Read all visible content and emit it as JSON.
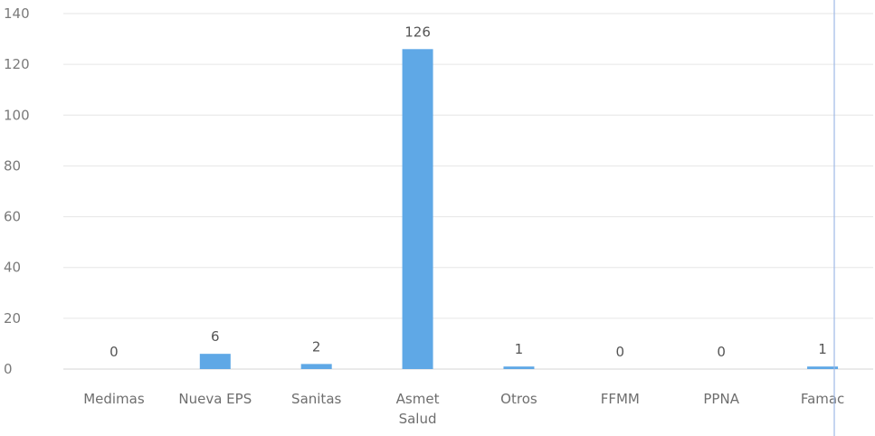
{
  "chart_data": {
    "type": "bar",
    "categories": [
      [
        "Medimas"
      ],
      [
        "Nueva EPS"
      ],
      [
        "Sanitas"
      ],
      [
        "Asmet",
        "Salud"
      ],
      [
        "Otros"
      ],
      [
        "FFMM"
      ],
      [
        "PPNA"
      ],
      [
        "Famac"
      ]
    ],
    "values": [
      0,
      6,
      2,
      126,
      1,
      0,
      0,
      1
    ],
    "data_labels": [
      "0",
      "6",
      "2",
      "126",
      "1",
      "0",
      "0",
      "1"
    ],
    "yticks": [
      "0",
      "20",
      "40",
      "60",
      "80",
      "100",
      "120",
      "140"
    ],
    "ylim": [
      0,
      140
    ],
    "grid": true,
    "legend": "none",
    "bar_color": "#5fa8e6",
    "title": "",
    "xlabel": "",
    "ylabel": ""
  }
}
